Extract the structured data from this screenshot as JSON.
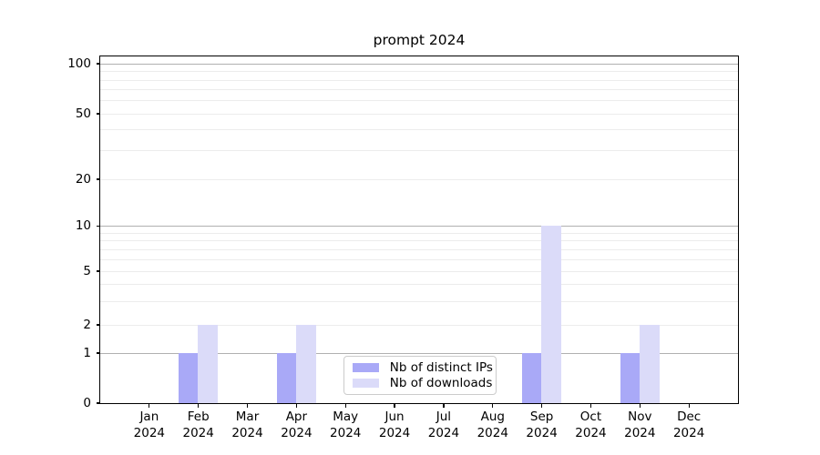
{
  "chart_data": {
    "type": "bar",
    "title": "prompt 2024",
    "categories": [
      "Jan 2024",
      "Feb 2024",
      "Mar 2024",
      "Apr 2024",
      "May 2024",
      "Jun 2024",
      "Jul 2024",
      "Aug 2024",
      "Sep 2024",
      "Oct 2024",
      "Nov 2024",
      "Dec 2024"
    ],
    "series": [
      {
        "name": "Nb of distinct IPs",
        "color": "#a9a9f7",
        "values": [
          0,
          1,
          0,
          1,
          0,
          0,
          0,
          0,
          1,
          0,
          1,
          0
        ]
      },
      {
        "name": "Nb of downloads",
        "color": "#dbdbf9",
        "values": [
          0,
          2,
          0,
          2,
          0,
          0,
          0,
          0,
          10,
          0,
          2,
          0
        ]
      }
    ],
    "yscale": "log-like with 0 baseline",
    "y_tick_labels": [
      0,
      1,
      2,
      5,
      10,
      20,
      50,
      100
    ],
    "y_gridlines_major": [
      1,
      10,
      100
    ],
    "y_gridlines_minor": [
      2,
      3,
      4,
      5,
      6,
      7,
      8,
      9,
      20,
      30,
      40,
      50,
      60,
      70,
      80,
      90
    ],
    "ylim": [
      0,
      110
    ],
    "grid": true,
    "legend": {
      "labels": [
        "Nb of distinct IPs",
        "Nb of downloads"
      ],
      "position": "lower center inside plot"
    }
  },
  "colors": {
    "bar_distinct_ips": "#a9a9f7",
    "bar_downloads": "#dbdbf9",
    "grid_major": "#b0b0b0",
    "grid_minor": "#ececec",
    "spine": "#000000",
    "legend_border": "#cccccc",
    "background": "#ffffff"
  }
}
